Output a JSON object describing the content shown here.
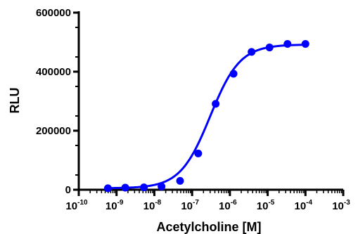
{
  "chart_data": {
    "type": "scatter",
    "title": "",
    "xlabel": "Acetylcholine [M]",
    "ylabel": "RLU",
    "xscale": "log",
    "xlim": [
      1e-10,
      0.001
    ],
    "ylim": [
      0,
      600000
    ],
    "x_tick_labels": [
      "10",
      "10",
      "10",
      "10",
      "10",
      "10",
      "10",
      "10"
    ],
    "x_tick_exponents": [
      "-10",
      "-9",
      "-8",
      "-7",
      "-6",
      "-5",
      "-4",
      "-3"
    ],
    "x_tick_values": [
      1e-10,
      1e-09,
      1e-08,
      1e-07,
      1e-06,
      1e-05,
      0.0001,
      0.001
    ],
    "y_tick_labels": [
      "0",
      "200000",
      "400000",
      "600000"
    ],
    "y_tick_values": [
      0,
      200000,
      400000,
      600000
    ],
    "grid": false,
    "legend": "none",
    "color": "#0000ff",
    "series": [
      {
        "points": [
          {
            "x": 5.9e-10,
            "y": 5000
          },
          {
            "x": 1.7e-09,
            "y": 7000
          },
          {
            "x": 5.3e-09,
            "y": 8000
          },
          {
            "x": 1.55e-08,
            "y": 11000
          },
          {
            "x": 4.8e-08,
            "y": 30000
          },
          {
            "x": 1.45e-07,
            "y": 123000
          },
          {
            "x": 4.2e-07,
            "y": 291000
          },
          {
            "x": 1.25e-06,
            "y": 393000
          },
          {
            "x": 3.75e-06,
            "y": 467000
          },
          {
            "x": 1.12e-05,
            "y": 482000
          },
          {
            "x": 3.35e-05,
            "y": 494000
          },
          {
            "x": 0.0001,
            "y": 494000
          }
        ],
        "fit": {
          "model": "4PL",
          "bottom": 5000,
          "top": 492000,
          "ec50": 3e-07,
          "hill": 1.1
        }
      }
    ]
  }
}
